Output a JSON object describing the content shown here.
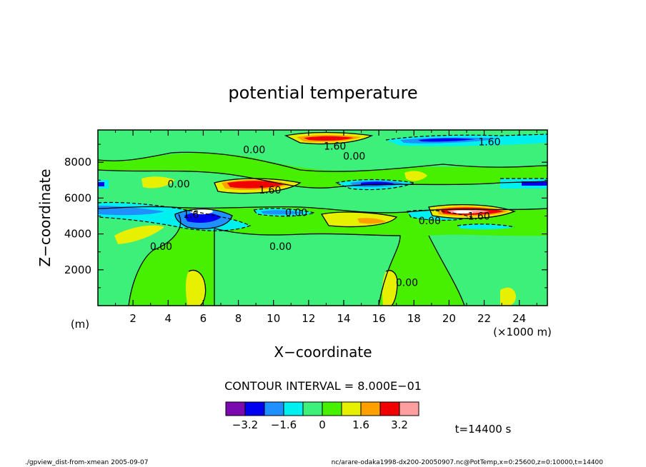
{
  "chart_data": {
    "type": "heatmap",
    "title": "potential temperature",
    "xlabel": "X−coordinate",
    "ylabel": "Z−coordinate",
    "x_unit": "(×1000 m)",
    "y_unit": "(m)",
    "xlim": [
      0,
      25.6
    ],
    "ylim": [
      0,
      9800
    ],
    "x_ticks": [
      2,
      4,
      6,
      8,
      10,
      12,
      14,
      16,
      18,
      20,
      22,
      24
    ],
    "y_ticks": [
      2000,
      4000,
      6000,
      8000
    ],
    "contour_interval_text": "CONTOUR INTERVAL = 8.000E−01",
    "contour_labels": [
      {
        "text": "0.00",
        "x": 8.9,
        "z": 8700
      },
      {
        "text": "1.60",
        "x": 13.5,
        "z": 8900
      },
      {
        "text": "0.00",
        "x": 14.6,
        "z": 8350
      },
      {
        "text": "1.60",
        "x": 22.3,
        "z": 9150
      },
      {
        "text": "0.00",
        "x": 4.6,
        "z": 6800
      },
      {
        "text": "1.60",
        "x": 9.8,
        "z": 6450
      },
      {
        "text": "1.6",
        "x": 5.3,
        "z": 5100
      },
      {
        "text": "0.00",
        "x": 11.3,
        "z": 5200
      },
      {
        "text": "0.00",
        "x": 18.9,
        "z": 4750
      },
      {
        "text": "1.60",
        "x": 21.7,
        "z": 5000
      },
      {
        "text": "0.00",
        "x": 3.6,
        "z": 3300
      },
      {
        "text": "0.00",
        "x": 10.4,
        "z": 3300
      },
      {
        "text": "0.00",
        "x": 17.6,
        "z": 1300
      }
    ],
    "colorbar": {
      "colors": [
        "#7a0ab0",
        "#0000f0",
        "#1e90ff",
        "#00f0f0",
        "#3cf07a",
        "#46f000",
        "#e6f000",
        "#ffa000",
        "#f00000",
        "#ff9e9e"
      ],
      "tick_labels": [
        "−3.2",
        "−1.6",
        "0",
        "1.6",
        "3.2"
      ]
    },
    "time_label": "t=14400 s",
    "footer_left": "./gpview_dist-from-xmean   2005-09-07",
    "footer_right": "nc/arare-odaka1998-dx200-20050907.nc@PotTemp,x=0:25600,z=0:10000,t=14400"
  }
}
